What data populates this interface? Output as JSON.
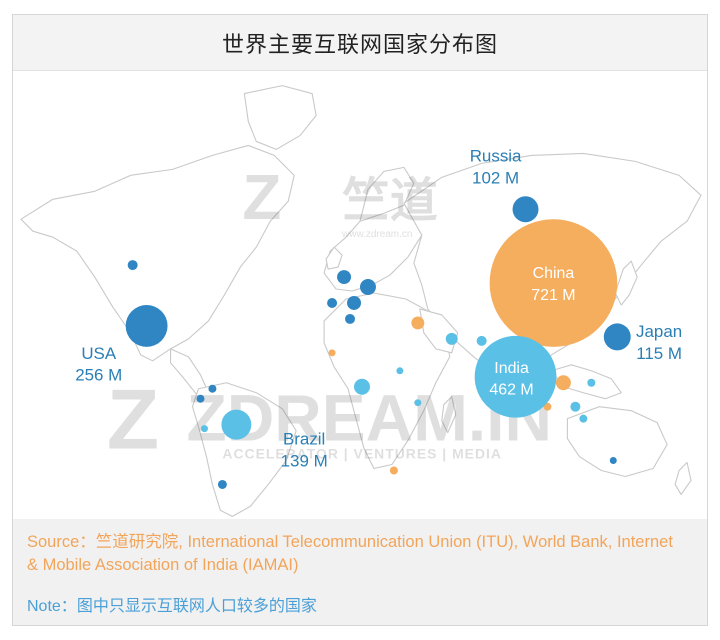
{
  "title": "世界主要互联网国家分布图",
  "watermark": {
    "brand_cn": "竺道",
    "brand_url": "www.zdream.cn",
    "brand_en": "ZDREAM.IN",
    "tagline": "ACCELERATOR | VENTURES | MEDIA"
  },
  "colors": {
    "large_dark": "#2f86c2",
    "medium_light": "#5bc0e6",
    "orange": "#f5ad5e",
    "label_blue": "#2a7fb5",
    "land_stroke": "#c9c9c9"
  },
  "countries": [
    {
      "name": "China",
      "value": "721 M",
      "users_m": 721,
      "color": "orange",
      "label_inside": true
    },
    {
      "name": "India",
      "value": "462 M",
      "users_m": 462,
      "color": "medium_light",
      "label_inside": true
    },
    {
      "name": "USA",
      "value": "256 M",
      "users_m": 256,
      "color": "large_dark",
      "label_inside": false
    },
    {
      "name": "Brazil",
      "value": "139 M",
      "users_m": 139,
      "color": "medium_light",
      "label_inside": false
    },
    {
      "name": "Japan",
      "value": "115 M",
      "users_m": 115,
      "color": "large_dark",
      "label_inside": false
    },
    {
      "name": "Russia",
      "value": "102 M",
      "users_m": 102,
      "color": "large_dark",
      "label_inside": false
    }
  ],
  "source_label": "Source：",
  "source_text": "竺道研究院, International Telecommunication Union (ITU), World Bank, Internet & Mobile Association of India (IAMAI)",
  "note_label": "Note：",
  "note_text": "图中只显示互联网人口较多的国家"
}
